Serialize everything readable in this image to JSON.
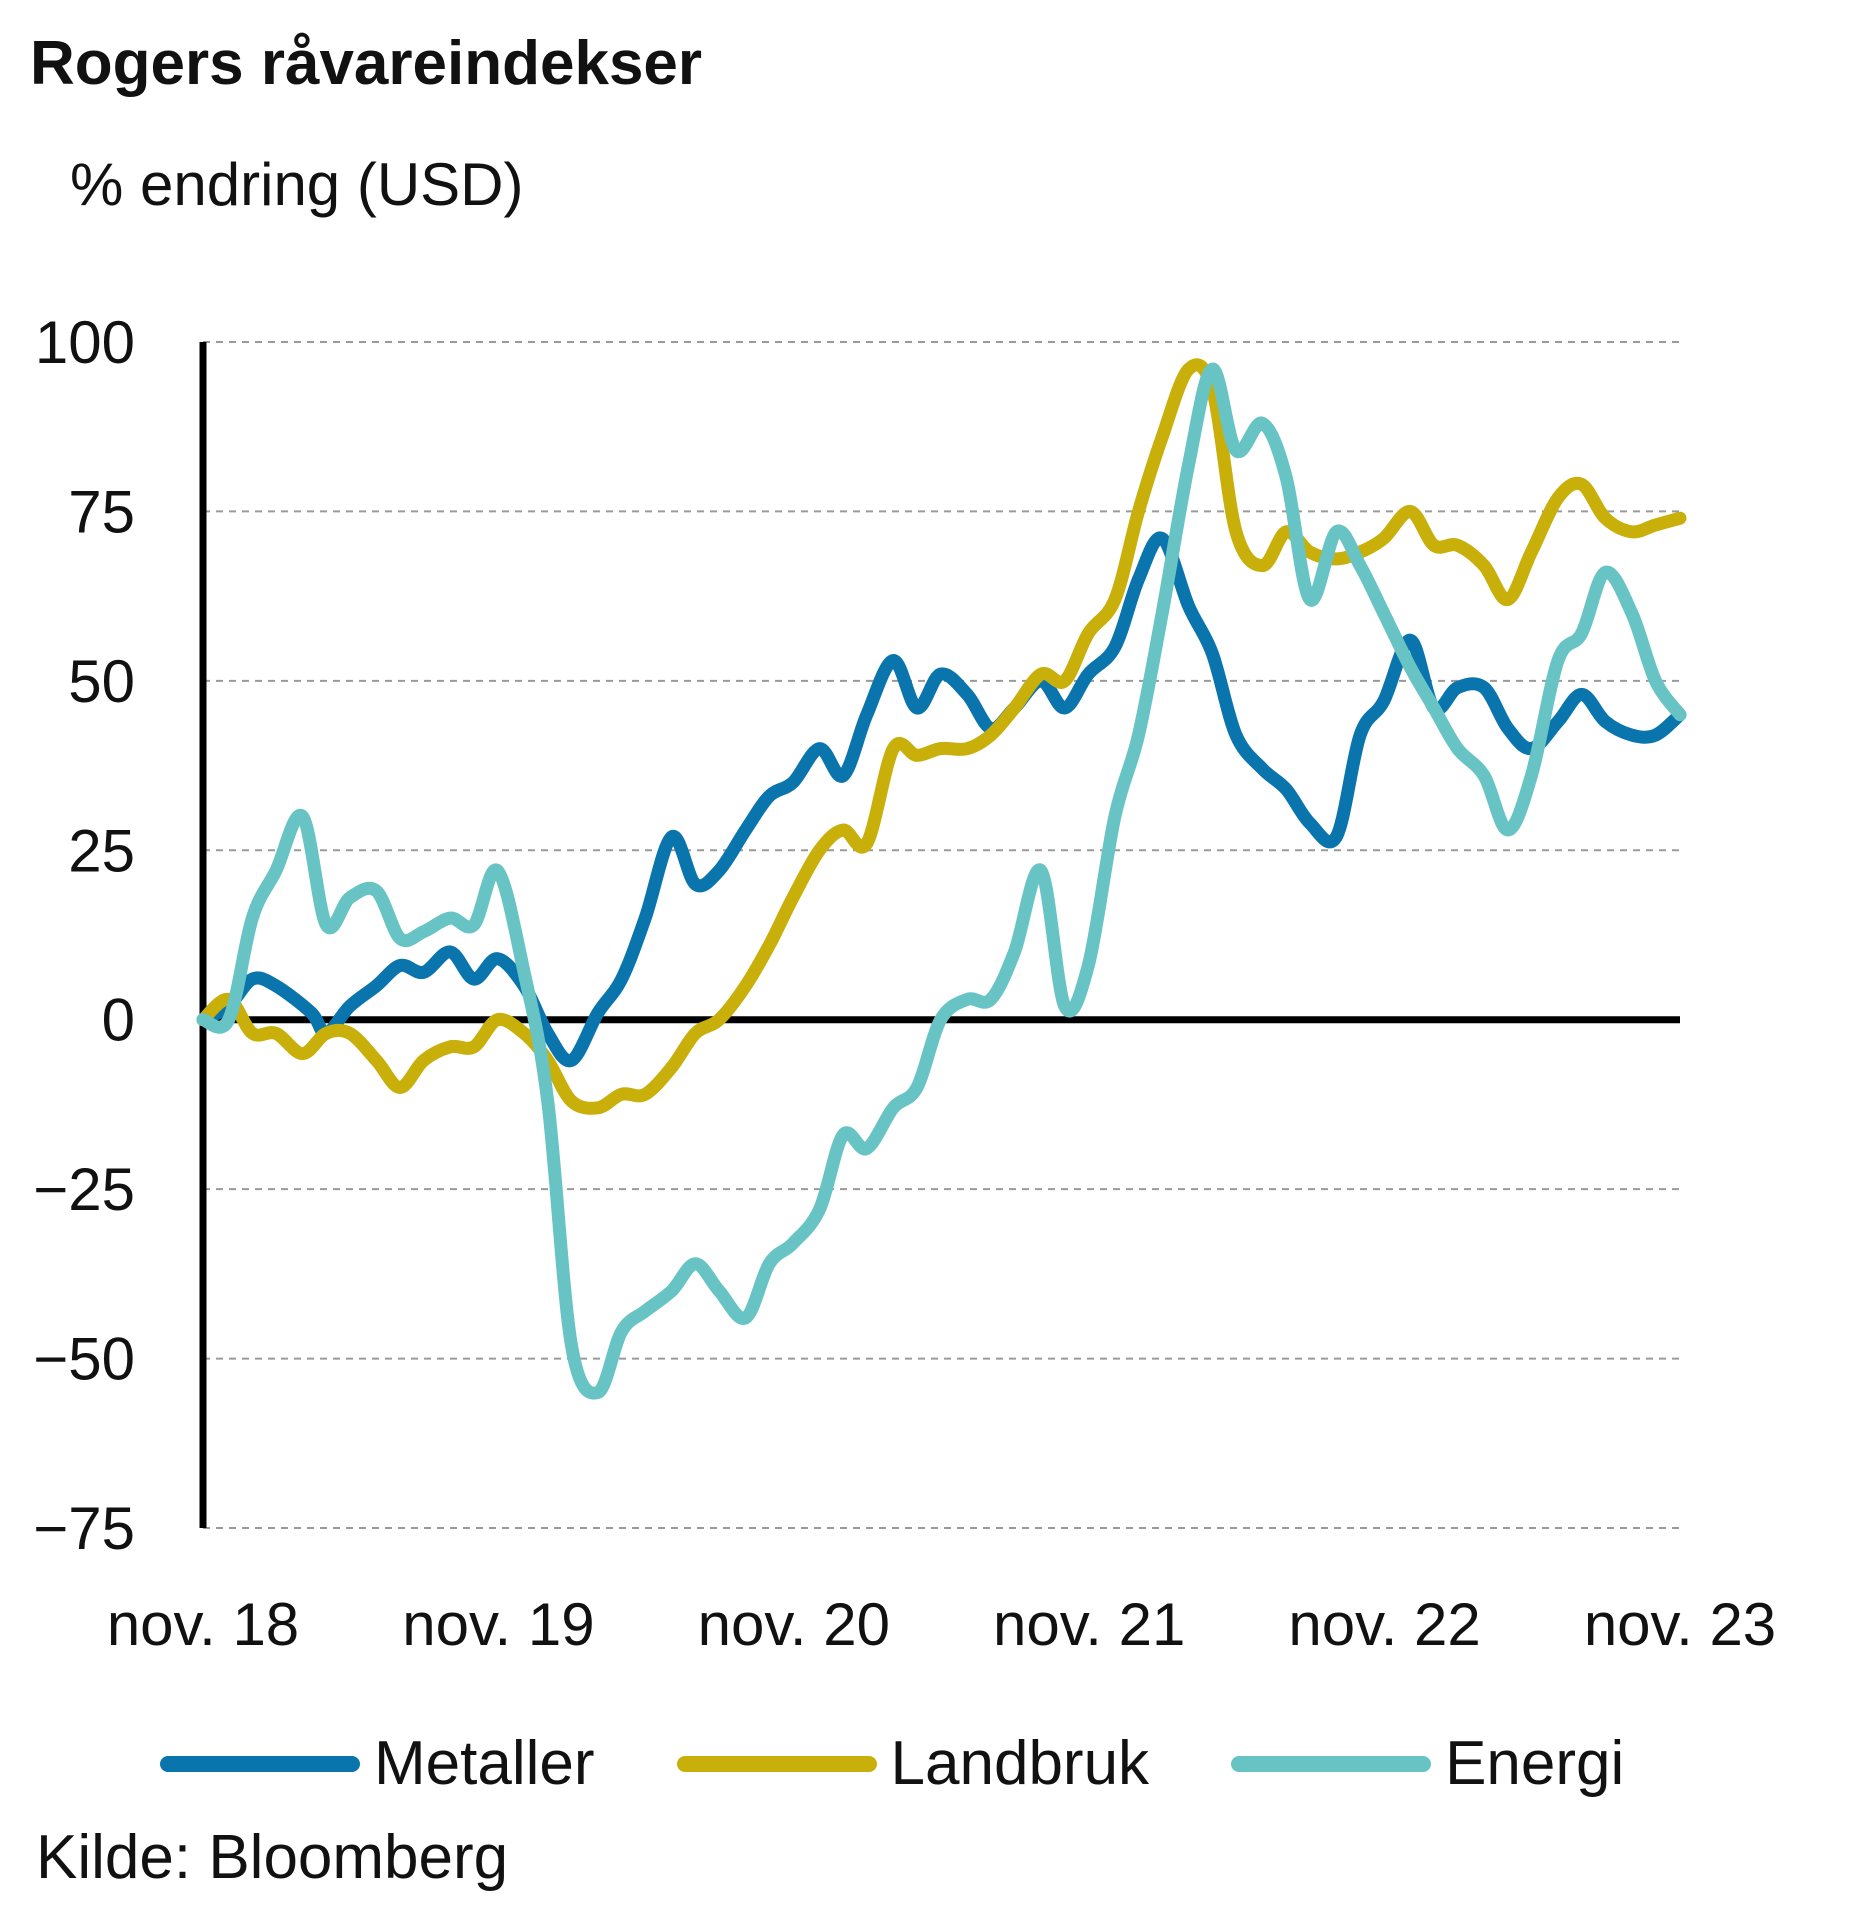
{
  "chart_data": {
    "type": "line",
    "title": "Rogers råvareindekser",
    "subtitle": "% endring (USD)",
    "source": "Kilde: Bloomberg",
    "ylim": [
      -75,
      100
    ],
    "yticks": [
      100,
      75,
      50,
      25,
      0,
      -25,
      -50,
      -75
    ],
    "xlim": [
      2018.833,
      2023.833
    ],
    "xticks": [
      {
        "x": 2018.833,
        "label": "nov. 18"
      },
      {
        "x": 2019.833,
        "label": "nov. 19"
      },
      {
        "x": 2020.833,
        "label": "nov. 20"
      },
      {
        "x": 2021.833,
        "label": "nov. 21"
      },
      {
        "x": 2022.833,
        "label": "nov. 22"
      },
      {
        "x": 2023.833,
        "label": "nov. 23"
      }
    ],
    "grid": true,
    "legend_position": "bottom",
    "series": [
      {
        "name": "Metaller",
        "color": "#0a75ad",
        "points": [
          [
            2018.833,
            0
          ],
          [
            2018.92,
            2
          ],
          [
            2019.0,
            6
          ],
          [
            2019.08,
            5
          ],
          [
            2019.2,
            1
          ],
          [
            2019.25,
            -2
          ],
          [
            2019.33,
            2
          ],
          [
            2019.42,
            5
          ],
          [
            2019.5,
            8
          ],
          [
            2019.58,
            7
          ],
          [
            2019.67,
            10
          ],
          [
            2019.75,
            6
          ],
          [
            2019.83,
            9
          ],
          [
            2019.92,
            5
          ],
          [
            2020.0,
            -2
          ],
          [
            2020.08,
            -6
          ],
          [
            2020.17,
            1
          ],
          [
            2020.25,
            6
          ],
          [
            2020.33,
            15
          ],
          [
            2020.42,
            27
          ],
          [
            2020.5,
            20
          ],
          [
            2020.58,
            22
          ],
          [
            2020.67,
            28
          ],
          [
            2020.75,
            33
          ],
          [
            2020.83,
            35
          ],
          [
            2020.92,
            40
          ],
          [
            2021.0,
            36
          ],
          [
            2021.08,
            45
          ],
          [
            2021.17,
            53
          ],
          [
            2021.25,
            46
          ],
          [
            2021.33,
            51
          ],
          [
            2021.42,
            48
          ],
          [
            2021.5,
            43
          ],
          [
            2021.58,
            46
          ],
          [
            2021.67,
            50
          ],
          [
            2021.75,
            46
          ],
          [
            2021.83,
            51
          ],
          [
            2021.92,
            55
          ],
          [
            2022.0,
            65
          ],
          [
            2022.08,
            71
          ],
          [
            2022.17,
            61
          ],
          [
            2022.25,
            54
          ],
          [
            2022.33,
            42
          ],
          [
            2022.42,
            37
          ],
          [
            2022.5,
            34
          ],
          [
            2022.58,
            29
          ],
          [
            2022.67,
            27
          ],
          [
            2022.75,
            42
          ],
          [
            2022.83,
            47
          ],
          [
            2022.92,
            56
          ],
          [
            2023.0,
            46
          ],
          [
            2023.08,
            49
          ],
          [
            2023.17,
            49
          ],
          [
            2023.25,
            43
          ],
          [
            2023.33,
            40
          ],
          [
            2023.42,
            44
          ],
          [
            2023.5,
            48
          ],
          [
            2023.58,
            44
          ],
          [
            2023.67,
            42
          ],
          [
            2023.75,
            42
          ],
          [
            2023.833,
            45
          ]
        ]
      },
      {
        "name": "Landbruk",
        "color": "#c8af0a",
        "points": [
          [
            2018.833,
            0
          ],
          [
            2018.92,
            3
          ],
          [
            2019.0,
            -2
          ],
          [
            2019.08,
            -2
          ],
          [
            2019.17,
            -5
          ],
          [
            2019.25,
            -2
          ],
          [
            2019.33,
            -2
          ],
          [
            2019.42,
            -6
          ],
          [
            2019.5,
            -10
          ],
          [
            2019.58,
            -6
          ],
          [
            2019.67,
            -4
          ],
          [
            2019.75,
            -4
          ],
          [
            2019.83,
            0
          ],
          [
            2019.92,
            -2
          ],
          [
            2020.0,
            -6
          ],
          [
            2020.08,
            -12
          ],
          [
            2020.17,
            -13
          ],
          [
            2020.25,
            -11
          ],
          [
            2020.33,
            -11
          ],
          [
            2020.42,
            -7
          ],
          [
            2020.5,
            -2
          ],
          [
            2020.58,
            0
          ],
          [
            2020.67,
            5
          ],
          [
            2020.75,
            11
          ],
          [
            2020.83,
            18
          ],
          [
            2020.92,
            25
          ],
          [
            2021.0,
            28
          ],
          [
            2021.08,
            26
          ],
          [
            2021.17,
            40
          ],
          [
            2021.25,
            39
          ],
          [
            2021.33,
            40
          ],
          [
            2021.42,
            40
          ],
          [
            2021.5,
            42
          ],
          [
            2021.58,
            46
          ],
          [
            2021.67,
            51
          ],
          [
            2021.75,
            50
          ],
          [
            2021.83,
            57
          ],
          [
            2021.92,
            62
          ],
          [
            2022.0,
            75
          ],
          [
            2022.08,
            86
          ],
          [
            2022.17,
            96
          ],
          [
            2022.25,
            93
          ],
          [
            2022.33,
            72
          ],
          [
            2022.42,
            67
          ],
          [
            2022.5,
            72
          ],
          [
            2022.58,
            69
          ],
          [
            2022.67,
            68
          ],
          [
            2022.75,
            69
          ],
          [
            2022.83,
            71
          ],
          [
            2022.92,
            75
          ],
          [
            2023.0,
            70
          ],
          [
            2023.08,
            70
          ],
          [
            2023.17,
            67
          ],
          [
            2023.25,
            62
          ],
          [
            2023.33,
            69
          ],
          [
            2023.42,
            77
          ],
          [
            2023.5,
            79
          ],
          [
            2023.58,
            74
          ],
          [
            2023.67,
            72
          ],
          [
            2023.75,
            73
          ],
          [
            2023.833,
            74
          ]
        ]
      },
      {
        "name": "Energi",
        "color": "#68c4c4",
        "points": [
          [
            2018.833,
            0
          ],
          [
            2018.92,
            0
          ],
          [
            2019.0,
            15
          ],
          [
            2019.08,
            22
          ],
          [
            2019.17,
            30
          ],
          [
            2019.25,
            14
          ],
          [
            2019.33,
            18
          ],
          [
            2019.42,
            19
          ],
          [
            2019.5,
            12
          ],
          [
            2019.58,
            13
          ],
          [
            2019.67,
            15
          ],
          [
            2019.75,
            14
          ],
          [
            2019.83,
            22
          ],
          [
            2019.92,
            7
          ],
          [
            2020.0,
            -12
          ],
          [
            2020.08,
            -48
          ],
          [
            2020.17,
            -55
          ],
          [
            2020.25,
            -46
          ],
          [
            2020.33,
            -43
          ],
          [
            2020.42,
            -40
          ],
          [
            2020.5,
            -36
          ],
          [
            2020.58,
            -40
          ],
          [
            2020.67,
            -44
          ],
          [
            2020.75,
            -36
          ],
          [
            2020.83,
            -33
          ],
          [
            2020.92,
            -28
          ],
          [
            2021.0,
            -17
          ],
          [
            2021.08,
            -19
          ],
          [
            2021.17,
            -13
          ],
          [
            2021.25,
            -10
          ],
          [
            2021.33,
            0
          ],
          [
            2021.42,
            3
          ],
          [
            2021.5,
            3
          ],
          [
            2021.58,
            10
          ],
          [
            2021.67,
            22
          ],
          [
            2021.75,
            2
          ],
          [
            2021.83,
            8
          ],
          [
            2021.92,
            30
          ],
          [
            2022.0,
            42
          ],
          [
            2022.08,
            60
          ],
          [
            2022.17,
            82
          ],
          [
            2022.25,
            96
          ],
          [
            2022.33,
            84
          ],
          [
            2022.42,
            88
          ],
          [
            2022.5,
            80
          ],
          [
            2022.58,
            62
          ],
          [
            2022.67,
            72
          ],
          [
            2022.75,
            67
          ],
          [
            2022.83,
            60
          ],
          [
            2022.92,
            52
          ],
          [
            2023.0,
            46
          ],
          [
            2023.08,
            40
          ],
          [
            2023.17,
            36
          ],
          [
            2023.25,
            28
          ],
          [
            2023.33,
            36
          ],
          [
            2023.42,
            53
          ],
          [
            2023.5,
            57
          ],
          [
            2023.58,
            66
          ],
          [
            2023.67,
            60
          ],
          [
            2023.75,
            50
          ],
          [
            2023.833,
            45
          ]
        ]
      }
    ]
  }
}
